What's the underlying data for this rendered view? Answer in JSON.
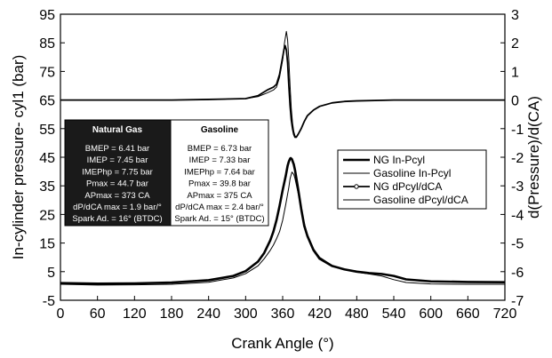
{
  "chart_data": {
    "type": "line",
    "xlabel": "Crank Angle (°)",
    "ylabel": "In-cylinder pressure- cyl1 (bar)",
    "y2label": "d(Pressure)/d(CA)",
    "xlim": [
      0,
      720
    ],
    "ylim": [
      -5,
      95
    ],
    "y2lim": [
      -7,
      3
    ],
    "x_ticks": [
      "0",
      "60",
      "120",
      "180",
      "240",
      "300",
      "360",
      "420",
      "480",
      "540",
      "600",
      "660",
      "720"
    ],
    "y_ticks": [
      "95",
      "85",
      "75",
      "65",
      "55",
      "45",
      "35",
      "25",
      "15",
      "5",
      "-5"
    ],
    "y2_ticks": [
      "3",
      "2",
      "1",
      "0",
      "-1",
      "-2",
      "-3",
      "-4",
      "-5",
      "-6",
      "-7"
    ],
    "legend": {
      "position": "right",
      "entries": [
        "NG In-Pcyl",
        "Gasoline In-Pcyl",
        "NG dPcyl/dCA",
        "Gasoline dPcyl/dCA"
      ]
    },
    "info_box": {
      "natural_gas": {
        "title": "Natural Gas",
        "lines": [
          "BMEP = 6.41 bar",
          "IMEP = 7.45 bar",
          "IMEPhp = 7.75 bar",
          "Pmax = 44.7 bar",
          "APmax = 373 CA",
          "dP/dCA max = 1.9 bar/°",
          "Spark Ad. = 16° (BTDC)"
        ]
      },
      "gasoline": {
        "title": "Gasoline",
        "lines": [
          "BMEP = 6.73 bar",
          "IMEP = 7.33 bar",
          "IMEPhp = 7.64 bar",
          "Pmax = 39.8 bar",
          "APmax = 375 CA",
          "dP/dCA max = 2.4 bar/°",
          "Spark Ad. = 15° (BTDC)"
        ]
      }
    },
    "series": [
      {
        "name": "NG In-Pcyl",
        "axis": "left",
        "style": "thick",
        "x": [
          0,
          60,
          120,
          180,
          240,
          280,
          300,
          320,
          330,
          340,
          345,
          350,
          355,
          360,
          365,
          368,
          370,
          372,
          373,
          375,
          378,
          380,
          385,
          390,
          395,
          400,
          410,
          420,
          440,
          460,
          480,
          500,
          520,
          540,
          560,
          600,
          660,
          720
        ],
        "y": [
          1.0,
          0.8,
          0.9,
          1.2,
          2.0,
          3.5,
          5.2,
          8.5,
          11.5,
          16.0,
          19.0,
          23.0,
          28.0,
          33.5,
          38.5,
          42.0,
          43.5,
          44.5,
          44.7,
          44.3,
          42.5,
          40.5,
          34.0,
          27.0,
          21.0,
          17.5,
          12.5,
          9.5,
          7.0,
          5.8,
          5.0,
          4.5,
          4.2,
          3.5,
          2.3,
          1.6,
          1.4,
          1.3
        ]
      },
      {
        "name": "Gasoline In-Pcyl",
        "axis": "left",
        "style": "thin",
        "x": [
          0,
          60,
          120,
          180,
          240,
          280,
          300,
          320,
          330,
          340,
          345,
          350,
          355,
          360,
          365,
          370,
          372,
          375,
          378,
          380,
          385,
          390,
          395,
          400,
          410,
          420,
          440,
          460,
          480,
          500,
          520,
          540,
          560,
          600,
          660,
          720
        ],
        "y": [
          0.6,
          0.3,
          0.4,
          0.6,
          1.3,
          2.8,
          4.3,
          7.0,
          9.5,
          12.5,
          14.3,
          16.5,
          19.0,
          23.0,
          28.5,
          34.5,
          37.5,
          39.8,
          39.0,
          37.5,
          32.5,
          27.0,
          22.0,
          18.0,
          13.0,
          10.0,
          7.2,
          5.8,
          4.8,
          4.2,
          3.5,
          2.2,
          1.2,
          0.7,
          0.6,
          0.6
        ]
      },
      {
        "name": "NG dPcyl/dCA",
        "axis": "right",
        "style": "marker",
        "x": [
          0,
          60,
          120,
          180,
          240,
          300,
          320,
          335,
          345,
          350,
          355,
          360,
          362,
          364,
          366,
          368,
          370,
          372,
          374,
          376,
          378,
          380,
          382,
          385,
          390,
          395,
          400,
          410,
          420,
          440,
          460,
          480,
          540,
          600,
          660,
          720
        ],
        "y": [
          0.0,
          0.0,
          0.0,
          0.0,
          0.02,
          0.05,
          0.15,
          0.35,
          0.45,
          0.55,
          0.9,
          1.5,
          1.75,
          1.9,
          1.75,
          1.3,
          0.5,
          -0.2,
          -0.7,
          -1.0,
          -1.2,
          -1.3,
          -1.3,
          -1.2,
          -1.0,
          -0.75,
          -0.55,
          -0.35,
          -0.22,
          -0.1,
          -0.05,
          -0.03,
          0.0,
          0.0,
          0.0,
          0.0
        ]
      },
      {
        "name": "Gasoline dPcyl/dCA",
        "axis": "right",
        "style": "thin",
        "x": [
          0,
          60,
          120,
          180,
          240,
          300,
          320,
          335,
          345,
          350,
          355,
          360,
          363,
          366,
          368,
          370,
          372,
          374,
          376,
          378,
          380,
          382,
          385,
          390,
          395,
          400,
          410,
          420,
          440,
          460,
          480,
          540,
          600,
          660,
          720
        ],
        "y": [
          0.0,
          0.0,
          0.0,
          0.0,
          0.02,
          0.05,
          0.12,
          0.25,
          0.35,
          0.45,
          0.8,
          1.4,
          2.0,
          2.4,
          2.1,
          1.4,
          0.5,
          -0.3,
          -0.8,
          -1.1,
          -1.25,
          -1.3,
          -1.2,
          -1.0,
          -0.75,
          -0.55,
          -0.35,
          -0.22,
          -0.1,
          -0.05,
          -0.03,
          0.0,
          0.0,
          0.0,
          0.0
        ]
      }
    ]
  }
}
